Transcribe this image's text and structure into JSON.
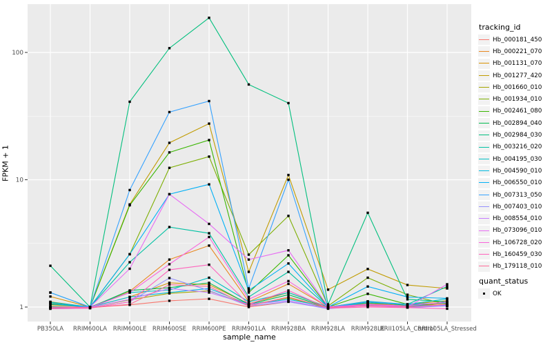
{
  "chart_data": {
    "type": "line",
    "title": "",
    "xlabel": "sample_name",
    "ylabel": "FPKM + 1",
    "yscale": "log10",
    "ylim": [
      0.93,
      240
    ],
    "yticks": [
      {
        "label": "1",
        "value": 1
      },
      {
        "label": "10",
        "value": 10
      },
      {
        "label": "100",
        "value": 100
      }
    ],
    "yminor": [
      3.1623,
      31.623
    ],
    "grid": "on",
    "legend_position": "right",
    "panel_bg": "#EBEBEB",
    "grid_color": "#FFFFFF",
    "axis_text_color": "#4D4D4D",
    "marker_color": "#000000",
    "categories": [
      "PB350LA",
      "RRIM600LA",
      "RRIM600LE",
      "RRIM600SE",
      "RRIM600PE",
      "RRIM901LA",
      "RRIM928BA",
      "RRIM928LA",
      "RRIM928LE",
      "RRII105LA_Control",
      "RRII105LA_Stressed"
    ],
    "series": [
      {
        "name": "Hb_000181_450",
        "color": "#F8766D",
        "values": [
          1.0,
          0.99,
          1.04,
          1.12,
          1.16,
          1.0,
          1.1,
          0.99,
          1.04,
          1.0,
          1.02
        ]
      },
      {
        "name": "Hb_000221_070",
        "color": "#E8871E",
        "values": [
          1.04,
          1.0,
          1.33,
          2.36,
          3.04,
          1.1,
          1.52,
          1.0,
          1.08,
          1.02,
          1.07
        ]
      },
      {
        "name": "Hb_001131_070",
        "color": "#D89000",
        "values": [
          1.21,
          1.0,
          1.2,
          1.55,
          1.5,
          1.06,
          1.3,
          1.0,
          1.1,
          1.05,
          1.12
        ]
      },
      {
        "name": "Hb_001277_420",
        "color": "#C09B00",
        "values": [
          1.1,
          1.0,
          6.4,
          19.5,
          27.6,
          1.89,
          10.9,
          1.37,
          1.99,
          1.49,
          1.4
        ]
      },
      {
        "name": "Hb_001660_010",
        "color": "#A3A500",
        "values": [
          0.98,
          0.99,
          1.14,
          1.28,
          1.34,
          1.04,
          1.18,
          0.98,
          1.07,
          1.01,
          1.04
        ]
      },
      {
        "name": "Hb_001934_010",
        "color": "#7CAE00",
        "values": [
          1.08,
          1.0,
          2.6,
          12.4,
          15.2,
          2.58,
          5.2,
          1.02,
          1.7,
          1.25,
          1.05
        ]
      },
      {
        "name": "Hb_002461_080",
        "color": "#39B600",
        "values": [
          1.05,
          1.0,
          6.3,
          16.4,
          20.5,
          1.3,
          2.55,
          1.0,
          1.27,
          1.05,
          1.03
        ]
      },
      {
        "name": "Hb_002894_040",
        "color": "#00BB4E",
        "values": [
          1.01,
          0.99,
          1.35,
          1.42,
          1.55,
          1.05,
          1.25,
          0.99,
          1.1,
          1.03,
          1.02
        ]
      },
      {
        "name": "Hb_002984_030",
        "color": "#00BF7D",
        "values": [
          2.11,
          1.0,
          41.0,
          108,
          187,
          56.0,
          40.0,
          1.05,
          5.5,
          1.15,
          1.1
        ]
      },
      {
        "name": "Hb_003216_020",
        "color": "#00C1A3",
        "values": [
          1.09,
          1.0,
          2.25,
          4.25,
          3.8,
          1.2,
          1.89,
          1.0,
          1.11,
          1.05,
          1.45
        ]
      },
      {
        "name": "Hb_004195_030",
        "color": "#00BFC4",
        "values": [
          1.3,
          1.0,
          1.3,
          1.36,
          1.7,
          1.1,
          1.3,
          1.0,
          1.08,
          1.05,
          1.16
        ]
      },
      {
        "name": "Hb_004590_010",
        "color": "#00BAE0",
        "values": [
          1.09,
          1.0,
          1.2,
          1.3,
          1.4,
          1.05,
          1.15,
          1.0,
          1.05,
          1.02,
          1.04
        ]
      },
      {
        "name": "Hb_006550_010",
        "color": "#00B0F6",
        "values": [
          1.06,
          1.0,
          2.6,
          7.7,
          9.2,
          1.35,
          2.2,
          1.0,
          1.45,
          1.2,
          1.17
        ]
      },
      {
        "name": "Hb_007313_050",
        "color": "#35A2FF",
        "values": [
          1.3,
          1.0,
          8.3,
          34.0,
          41.5,
          1.4,
          10.0,
          1.0,
          1.1,
          1.05,
          1.08
        ]
      },
      {
        "name": "Hb_007403_010",
        "color": "#9590FF",
        "values": [
          0.97,
          0.98,
          1.1,
          1.69,
          1.35,
          1.02,
          1.1,
          0.97,
          1.03,
          0.99,
          1.02
        ]
      },
      {
        "name": "Hb_008554_010",
        "color": "#C77CFF",
        "values": [
          0.99,
          0.99,
          1.15,
          1.4,
          1.3,
          1.05,
          1.12,
          0.98,
          1.05,
          1.0,
          1.03
        ]
      },
      {
        "name": "Hb_073096_010",
        "color": "#E76BF3",
        "values": [
          1.0,
          1.0,
          2.0,
          7.7,
          4.5,
          2.36,
          2.79,
          1.01,
          1.02,
          1.0,
          1.51
        ]
      },
      {
        "name": "Hb_106728_020",
        "color": "#FA62DB",
        "values": [
          1.0,
          0.99,
          1.3,
          2.17,
          3.55,
          1.15,
          1.6,
          1.0,
          1.05,
          1.02,
          1.1
        ]
      },
      {
        "name": "Hb_160459_030",
        "color": "#FF62BC",
        "values": [
          0.97,
          0.98,
          1.1,
          1.96,
          2.15,
          1.05,
          1.35,
          0.98,
          1.0,
          0.99,
          0.97
        ]
      },
      {
        "name": "Hb_179118_010",
        "color": "#FF6A98",
        "values": [
          1.0,
          0.99,
          1.05,
          1.5,
          1.45,
          1.02,
          1.2,
          0.99,
          1.02,
          1.0,
          1.05
        ]
      }
    ],
    "legend": {
      "title": "tracking_id"
    },
    "legend2": {
      "title": "quant_status",
      "items": [
        "OK"
      ]
    }
  }
}
